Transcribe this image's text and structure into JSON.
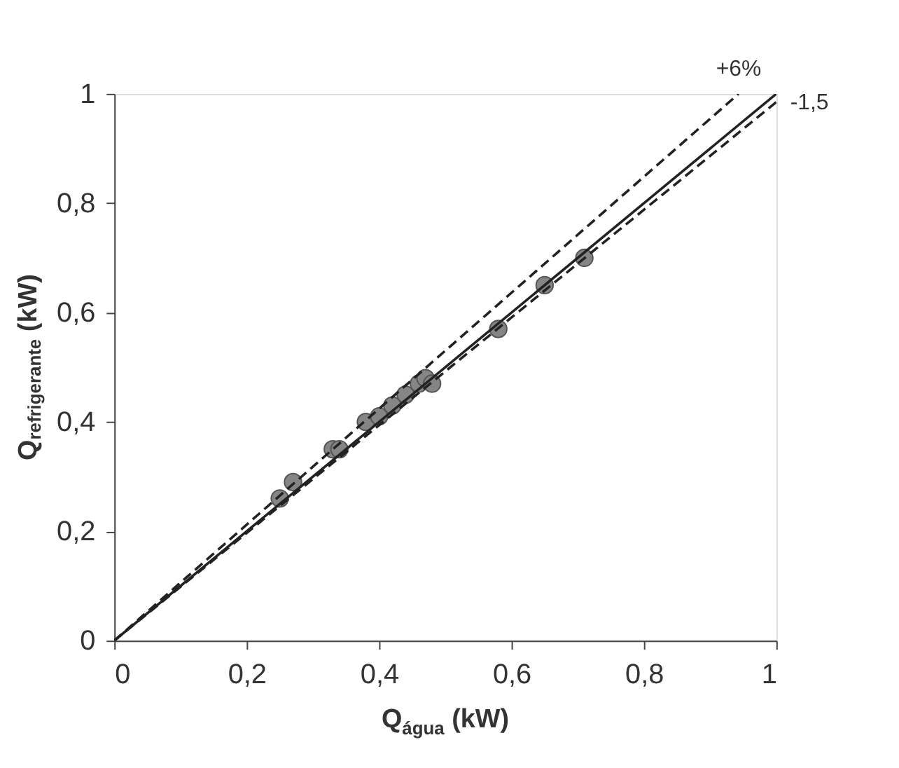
{
  "chart_data": {
    "type": "scatter",
    "xlabel": "Q$_{água}$ (kW)",
    "ylabel": "Q$_{refrigerante}$ (kW)",
    "xlim": [
      0,
      1
    ],
    "ylim": [
      0,
      1
    ],
    "xticks": [
      0,
      {
        "value": 0.2,
        "label": "0,2"
      },
      {
        "value": 0.4,
        "label": "0,4"
      },
      {
        "value": 0.6,
        "label": "0,6"
      },
      {
        "value": 0.8,
        "label": "0,8"
      },
      1
    ],
    "yticks": [
      0,
      {
        "value": 0.2,
        "label": "0,2"
      },
      {
        "value": 0.4,
        "label": "0,4"
      },
      {
        "value": 0.6,
        "label": "0,6"
      },
      {
        "value": 0.8,
        "label": "0,8"
      },
      1
    ],
    "grid": false,
    "series": [
      {
        "marker": "circle",
        "color": "#858585",
        "x": [
          0.25,
          0.27,
          0.33,
          0.34,
          0.38,
          0.4,
          0.42,
          0.44,
          0.46,
          0.47,
          0.48,
          0.58,
          0.65,
          0.71
        ],
        "values": [
          0.26,
          0.29,
          0.35,
          0.35,
          0.4,
          0.41,
          0.43,
          0.45,
          0.47,
          0.48,
          0.47,
          0.57,
          0.65,
          0.7
        ]
      },
      {
        "type": "line",
        "color": "#222222",
        "line_style": "solid",
        "x": [
          0,
          1
        ],
        "values": [
          0,
          1
        ]
      },
      {
        "type": "line",
        "name": "+6%",
        "color": "#222222",
        "line_style": "dashed",
        "x": [
          0,
          0.943
        ],
        "values": [
          0,
          1
        ]
      },
      {
        "type": "line",
        "name": "-1,5",
        "color": "#222222",
        "line_style": "dashed",
        "x": [
          0,
          1
        ],
        "values": [
          0,
          0.985
        ]
      }
    ]
  }
}
